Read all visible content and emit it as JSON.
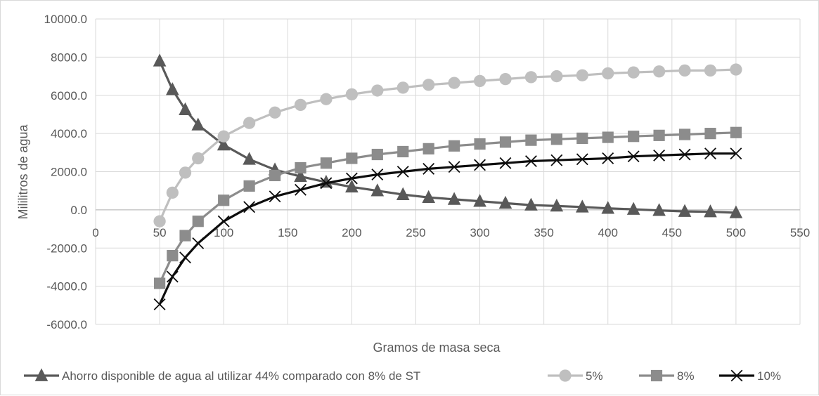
{
  "chart_data": {
    "type": "line",
    "title": "",
    "xlabel": "Gramos de masa seca",
    "ylabel": "Mililitros de agua",
    "xlim": [
      0,
      550
    ],
    "ylim": [
      -6000,
      10000
    ],
    "x_ticks": [
      "0",
      "50",
      "100",
      "150",
      "200",
      "250",
      "300",
      "350",
      "400",
      "450",
      "500",
      "550"
    ],
    "y_ticks": [
      "10000.0",
      "8000.0",
      "6000.0",
      "4000.0",
      "2000.0",
      "0.0",
      "-2000.0",
      "-4000.0",
      "-6000.0"
    ],
    "grid": true,
    "legend_position": "bottom",
    "x": [
      50,
      60,
      70,
      80,
      100,
      120,
      140,
      160,
      180,
      200,
      220,
      240,
      260,
      280,
      300,
      320,
      340,
      360,
      380,
      400,
      420,
      440,
      460,
      480,
      500
    ],
    "series": [
      {
        "name": "Ahorro disponible de agua al utilizar 44% comparado con 8% de ST",
        "color": "#595959",
        "marker": "triangle",
        "values": [
          7800,
          6300,
          5250,
          4450,
          3400,
          2650,
          2100,
          1750,
          1450,
          1200,
          1000,
          800,
          650,
          550,
          450,
          350,
          250,
          200,
          150,
          80,
          30,
          -30,
          -80,
          -100,
          -150
        ]
      },
      {
        "name": "5%",
        "color": "#bfbfbf",
        "marker": "circle",
        "values": [
          -600,
          900,
          1950,
          2700,
          3850,
          4550,
          5100,
          5500,
          5800,
          6050,
          6250,
          6400,
          6550,
          6650,
          6750,
          6850,
          6950,
          7000,
          7050,
          7150,
          7200,
          7250,
          7300,
          7300,
          7350
        ]
      },
      {
        "name": "8%",
        "color": "#8c8c8c",
        "marker": "square",
        "values": [
          -3850,
          -2400,
          -1350,
          -600,
          500,
          1250,
          1800,
          2200,
          2450,
          2700,
          2900,
          3050,
          3200,
          3350,
          3450,
          3550,
          3650,
          3700,
          3750,
          3800,
          3850,
          3900,
          3950,
          4000,
          4050
        ]
      },
      {
        "name": "10%",
        "color": "#0d0d0d",
        "marker": "x",
        "values": [
          -4950,
          -3500,
          -2500,
          -1750,
          -600,
          150,
          700,
          1050,
          1400,
          1650,
          1850,
          2000,
          2150,
          2250,
          2350,
          2450,
          2550,
          2600,
          2650,
          2700,
          2800,
          2850,
          2900,
          2950,
          2950
        ]
      }
    ]
  }
}
